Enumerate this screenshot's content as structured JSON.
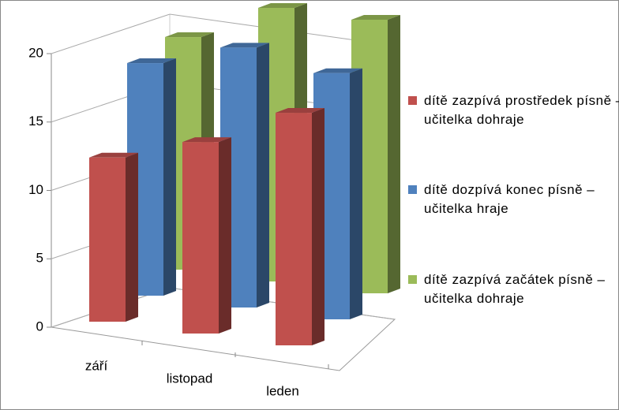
{
  "chart_data": {
    "type": "bar3d",
    "categories": [
      "září",
      "listopad",
      "leden"
    ],
    "series": [
      {
        "name": "dítě zazpívá prostředek písně – učitelka dohraje",
        "color": "#c0504d",
        "values": [
          12,
          14,
          17
        ]
      },
      {
        "name": "dítě dozpívá konec písně – učitelka hraje",
        "color": "#4f81bd",
        "values": [
          17,
          19,
          18
        ]
      },
      {
        "name": "dítě zazpívá začátek písně – učitelka dohraje",
        "color": "#9bbb59",
        "values": [
          17,
          20,
          20
        ]
      }
    ],
    "ylim": [
      0,
      20
    ],
    "yticks": [
      0,
      5,
      10,
      15,
      20
    ],
    "grid": true
  }
}
